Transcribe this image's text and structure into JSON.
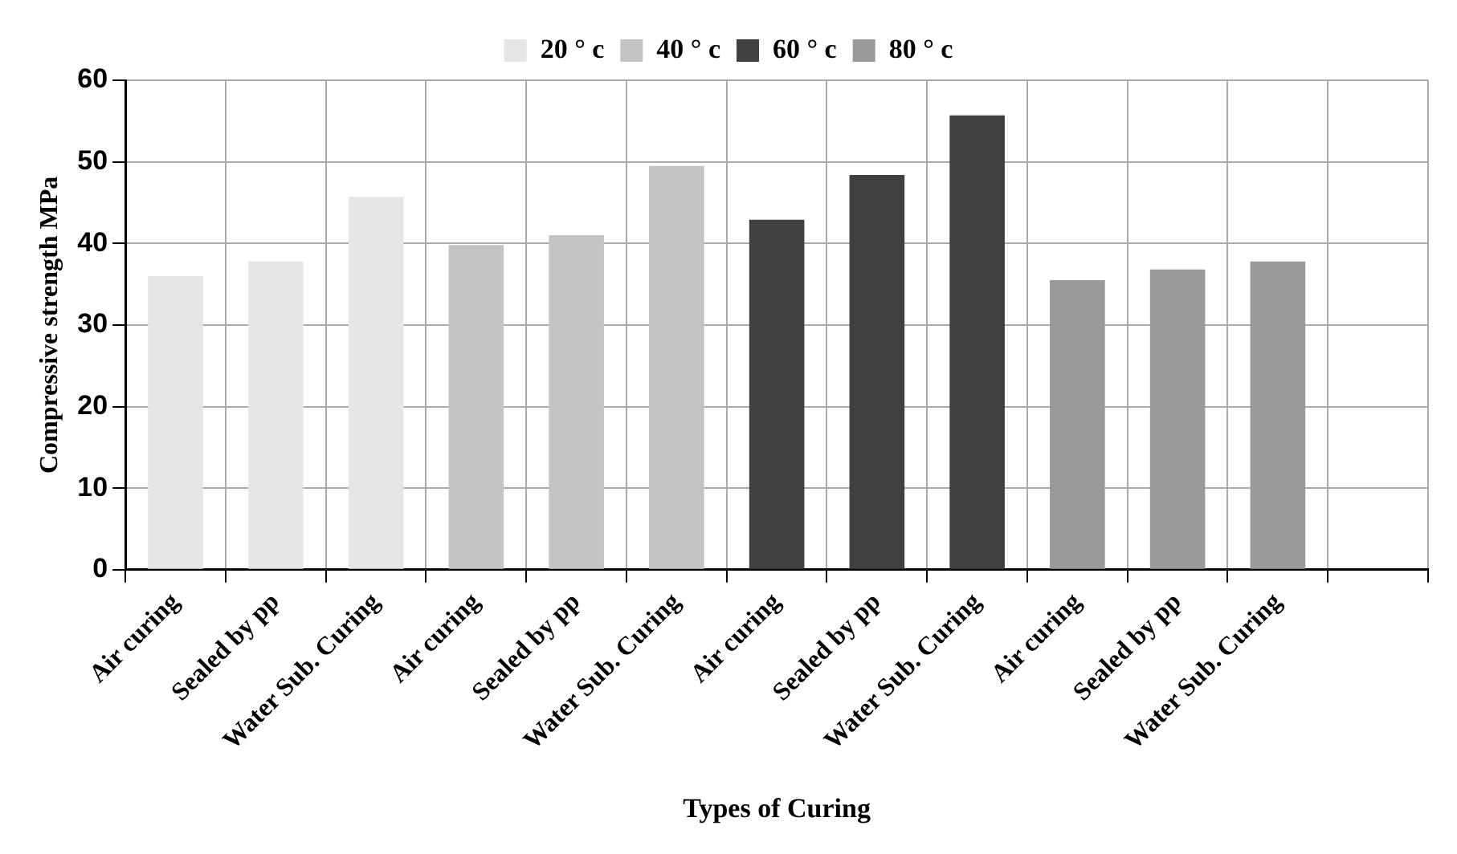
{
  "chart_data": {
    "type": "bar",
    "xlabel": "Types of Curing",
    "ylabel": "Compressive strength MPa",
    "categories": [
      "Air curing",
      "Sealed by pp",
      "Water Sub. Curing",
      "Air curing",
      "Sealed by pp",
      "Water Sub. Curing",
      "Air curing",
      "Sealed by pp",
      "Water Sub. Curing",
      "Air curing",
      "Sealed by pp",
      "Water Sub. Curing",
      null
    ],
    "series": [
      {
        "name": "20 ° c",
        "color": "#e6e6e6",
        "values": [
          36.0,
          37.8,
          45.7,
          null,
          null,
          null,
          null,
          null,
          null,
          null,
          null,
          null,
          null
        ]
      },
      {
        "name": "40 ° c",
        "color": "#c4c4c4",
        "values": [
          null,
          null,
          null,
          39.8,
          41.0,
          49.5,
          null,
          null,
          null,
          null,
          null,
          null,
          null
        ]
      },
      {
        "name": "60 ° c",
        "color": "#404040",
        "values": [
          null,
          null,
          null,
          null,
          null,
          null,
          42.9,
          48.4,
          55.7,
          null,
          null,
          null,
          null
        ]
      },
      {
        "name": "80 ° c",
        "color": "#9a9a9a",
        "values": [
          null,
          null,
          null,
          null,
          null,
          null,
          null,
          null,
          null,
          35.5,
          36.8,
          37.8,
          null
        ]
      }
    ],
    "ylim": [
      0,
      60
    ],
    "yticks": [
      0,
      10,
      20,
      30,
      40,
      50,
      60
    ],
    "grid": true,
    "legend": "top"
  }
}
